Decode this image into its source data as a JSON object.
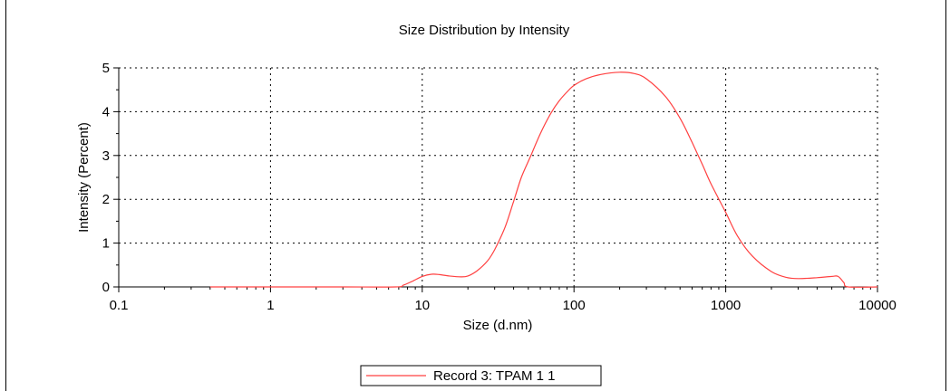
{
  "chart_data": {
    "type": "line",
    "title": "Size Distribution by Intensity",
    "xlabel": "Size (d.nm)",
    "ylabel": "Intensity (Percent)",
    "x_scale": "log",
    "xlim": [
      0.1,
      10000
    ],
    "ylim": [
      0,
      5
    ],
    "x_ticks": [
      0.1,
      1,
      10,
      100,
      1000,
      10000
    ],
    "x_tick_labels": [
      "0.1",
      "1",
      "10",
      "100",
      "1000",
      "10000"
    ],
    "y_ticks": [
      0,
      1,
      2,
      3,
      4,
      5
    ],
    "y_tick_labels": [
      "0",
      "1",
      "2",
      "3",
      "4",
      "5"
    ],
    "grid": true,
    "legend_position": "bottom-center",
    "series": [
      {
        "name": "Record 3: TPAM 1 1",
        "color": "#ff4040",
        "points": [
          [
            0.4,
            0
          ],
          [
            1,
            0
          ],
          [
            3,
            0
          ],
          [
            6.7,
            0
          ],
          [
            7.5,
            0.04
          ],
          [
            8.5,
            0.12
          ],
          [
            10,
            0.24
          ],
          [
            11.5,
            0.29
          ],
          [
            13,
            0.28
          ],
          [
            15,
            0.25
          ],
          [
            18,
            0.23
          ],
          [
            20,
            0.25
          ],
          [
            23,
            0.37
          ],
          [
            27,
            0.6
          ],
          [
            30,
            0.85
          ],
          [
            35,
            1.35
          ],
          [
            40,
            1.95
          ],
          [
            45,
            2.5
          ],
          [
            52,
            3.0
          ],
          [
            60,
            3.5
          ],
          [
            70,
            3.95
          ],
          [
            80,
            4.25
          ],
          [
            90,
            4.45
          ],
          [
            100,
            4.6
          ],
          [
            120,
            4.75
          ],
          [
            150,
            4.85
          ],
          [
            200,
            4.9
          ],
          [
            250,
            4.87
          ],
          [
            300,
            4.75
          ],
          [
            400,
            4.35
          ],
          [
            500,
            3.85
          ],
          [
            600,
            3.3
          ],
          [
            700,
            2.8
          ],
          [
            800,
            2.35
          ],
          [
            1000,
            1.7
          ],
          [
            1200,
            1.15
          ],
          [
            1500,
            0.7
          ],
          [
            2000,
            0.35
          ],
          [
            2500,
            0.22
          ],
          [
            3000,
            0.19
          ],
          [
            4000,
            0.21
          ],
          [
            5000,
            0.24
          ],
          [
            5500,
            0.24
          ],
          [
            6000,
            0.1
          ],
          [
            6400,
            0
          ],
          [
            10000,
            0
          ]
        ]
      }
    ]
  }
}
